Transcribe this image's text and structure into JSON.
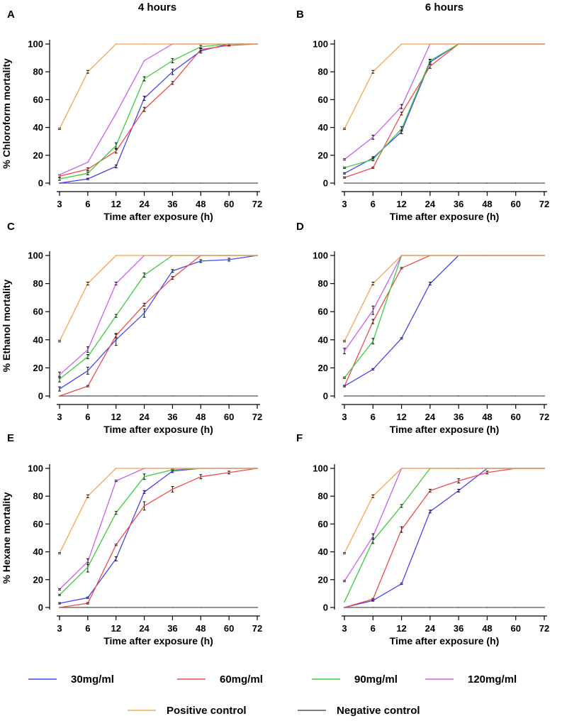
{
  "colors": {
    "c30": "#4646ee",
    "c60": "#ee4b4b",
    "c90": "#3ccc3c",
    "c120": "#c860ee",
    "pos": "#f5a550",
    "neg": "#555555",
    "axis": "#000000",
    "errorbar": "#111111"
  },
  "column_titles": [
    "4 hours",
    "6 hours"
  ],
  "legend": {
    "row1": [
      {
        "key": "c30",
        "label": "30mg/ml"
      },
      {
        "key": "c60",
        "label": "60mg/ml"
      },
      {
        "key": "c90",
        "label": "90mg/ml"
      },
      {
        "key": "c120",
        "label": "120mg/ml"
      }
    ],
    "row2": [
      {
        "key": "pos",
        "label": "Positive control"
      },
      {
        "key": "neg",
        "label": "Negative control"
      }
    ]
  },
  "chart_data": [
    {
      "panel": "A",
      "type": "line",
      "ylabel": "% Chloroform mortality",
      "xlabel": "Time after exposure (h)",
      "categories": [
        "3",
        "6",
        "12",
        "24",
        "36",
        "48",
        "60",
        "72"
      ],
      "ylim": [
        0,
        100
      ],
      "yticks": [
        0,
        20,
        40,
        60,
        80,
        100
      ],
      "series": [
        {
          "name": "30mg/ml",
          "key": "c30",
          "values": [
            0,
            3,
            12,
            61,
            80,
            95,
            100,
            100
          ],
          "err": [
            0,
            0.5,
            1,
            1.5,
            2,
            1.5,
            0,
            0
          ]
        },
        {
          "name": "60mg/ml",
          "key": "c60",
          "values": [
            5,
            10,
            23,
            53,
            72,
            96,
            99,
            100
          ],
          "err": [
            1,
            1,
            1.5,
            1.5,
            1,
            1,
            0.5,
            0
          ]
        },
        {
          "name": "90mg/ml",
          "key": "c90",
          "values": [
            3,
            7,
            27,
            75,
            88,
            98,
            100,
            100
          ],
          "err": [
            1,
            1,
            2,
            1.5,
            1.5,
            1,
            0,
            0
          ]
        },
        {
          "name": "120mg/ml",
          "key": "c120",
          "values": [
            6,
            15,
            50,
            88,
            100,
            100,
            100,
            100
          ],
          "err": [
            0,
            0,
            0,
            0,
            0,
            0,
            0,
            0
          ]
        },
        {
          "name": "Positive control",
          "key": "pos",
          "values": [
            39,
            80,
            100,
            100,
            100,
            100,
            100,
            100
          ],
          "err": [
            0.5,
            1,
            0,
            0,
            0,
            0,
            0,
            0
          ]
        },
        {
          "name": "Negative control",
          "key": "neg",
          "values": [
            0,
            0,
            0,
            0,
            0,
            0,
            0,
            0
          ],
          "err": [
            0,
            0,
            0,
            0,
            0,
            0,
            0,
            0
          ]
        }
      ]
    },
    {
      "panel": "B",
      "type": "line",
      "ylabel": "",
      "xlabel": "Time after exposure (h)",
      "categories": [
        "3",
        "6",
        "12",
        "24",
        "36",
        "48",
        "60",
        "72"
      ],
      "ylim": [
        0,
        100
      ],
      "yticks": [
        0,
        20,
        40,
        60,
        80,
        100
      ],
      "series": [
        {
          "name": "30mg/ml",
          "key": "c30",
          "values": [
            7,
            18,
            37,
            87,
            100,
            100,
            100,
            100
          ],
          "err": [
            0.5,
            1,
            1.5,
            1.5,
            0,
            0,
            0,
            0
          ]
        },
        {
          "name": "60mg/ml",
          "key": "c60",
          "values": [
            4,
            11,
            50,
            84,
            100,
            100,
            100,
            100
          ],
          "err": [
            0.5,
            0.5,
            1,
            1.5,
            0,
            0,
            0,
            0
          ]
        },
        {
          "name": "90mg/ml",
          "key": "c90",
          "values": [
            11,
            17,
            39,
            88,
            100,
            100,
            100,
            100
          ],
          "err": [
            0.5,
            1,
            1.5,
            1,
            0,
            0,
            0,
            0
          ]
        },
        {
          "name": "120mg/ml",
          "key": "c120",
          "values": [
            17,
            33,
            55,
            100,
            100,
            100,
            100,
            100
          ],
          "err": [
            0.5,
            1.5,
            1.5,
            0,
            0,
            0,
            0,
            0
          ]
        },
        {
          "name": "Positive control",
          "key": "pos",
          "values": [
            39,
            80,
            100,
            100,
            100,
            100,
            100,
            100
          ],
          "err": [
            0.5,
            1,
            0,
            0,
            0,
            0,
            0,
            0
          ]
        },
        {
          "name": "Negative control",
          "key": "neg",
          "values": [
            0,
            0,
            0,
            0,
            0,
            0,
            0,
            0
          ],
          "err": [
            0,
            0,
            0,
            0,
            0,
            0,
            0,
            0
          ]
        }
      ]
    },
    {
      "panel": "C",
      "type": "line",
      "ylabel": "% Ethanol mortality",
      "xlabel": "Time after exposure (h)",
      "categories": [
        "3",
        "6",
        "12",
        "24",
        "36",
        "48",
        "60",
        "72"
      ],
      "ylim": [
        0,
        100
      ],
      "yticks": [
        0,
        20,
        40,
        60,
        80,
        100
      ],
      "series": [
        {
          "name": "30mg/ml",
          "key": "c30",
          "values": [
            5,
            18,
            40,
            59,
            89,
            96,
            97,
            100
          ],
          "err": [
            1.5,
            2.5,
            4,
            3,
            1,
            1,
            1,
            0
          ]
        },
        {
          "name": "60mg/ml",
          "key": "c60",
          "values": [
            0,
            7,
            43,
            65,
            84,
            100,
            100,
            100
          ],
          "err": [
            0,
            0.5,
            1.5,
            1,
            1,
            0,
            0,
            0
          ]
        },
        {
          "name": "90mg/ml",
          "key": "c90",
          "values": [
            12,
            28,
            57,
            86,
            100,
            100,
            100,
            100
          ],
          "err": [
            2,
            1.5,
            1,
            1.5,
            0,
            0,
            0,
            0
          ]
        },
        {
          "name": "120mg/ml",
          "key": "c120",
          "values": [
            15,
            33,
            80,
            100,
            100,
            100,
            100,
            100
          ],
          "err": [
            2,
            2,
            1,
            0,
            0,
            0,
            0,
            0
          ]
        },
        {
          "name": "Positive control",
          "key": "pos",
          "values": [
            39,
            80,
            100,
            100,
            100,
            100,
            100,
            100
          ],
          "err": [
            0.5,
            1,
            0,
            0,
            0,
            0,
            0,
            0
          ]
        },
        {
          "name": "Negative control",
          "key": "neg",
          "values": [
            0,
            0,
            0,
            0,
            0,
            0,
            0,
            0
          ],
          "err": [
            0,
            0,
            0,
            0,
            0,
            0,
            0,
            0
          ]
        }
      ]
    },
    {
      "panel": "D",
      "type": "line",
      "ylabel": "",
      "xlabel": "Time after exposure (h)",
      "categories": [
        "3",
        "6",
        "12",
        "24",
        "36",
        "48",
        "60",
        "72"
      ],
      "ylim": [
        0,
        100
      ],
      "yticks": [
        0,
        20,
        40,
        60,
        80,
        100
      ],
      "series": [
        {
          "name": "30mg/ml",
          "key": "c30",
          "values": [
            7,
            19,
            41,
            80,
            100,
            100,
            100,
            100
          ],
          "err": [
            0.5,
            0.5,
            0.5,
            1,
            0,
            0,
            0,
            0
          ]
        },
        {
          "name": "60mg/ml",
          "key": "c60",
          "values": [
            7,
            53,
            91,
            100,
            100,
            100,
            100,
            100
          ],
          "err": [
            0.5,
            1.5,
            0.5,
            0,
            0,
            0,
            0,
            0
          ]
        },
        {
          "name": "90mg/ml",
          "key": "c90",
          "values": [
            13,
            39,
            100,
            100,
            100,
            100,
            100,
            100
          ],
          "err": [
            0.5,
            2,
            0,
            0,
            0,
            0,
            0,
            0
          ]
        },
        {
          "name": "120mg/ml",
          "key": "c120",
          "values": [
            32,
            61,
            100,
            100,
            100,
            100,
            100,
            100
          ],
          "err": [
            2,
            3,
            0,
            0,
            0,
            0,
            0,
            0
          ]
        },
        {
          "name": "Positive control",
          "key": "pos",
          "values": [
            39,
            80,
            100,
            100,
            100,
            100,
            100,
            100
          ],
          "err": [
            0.5,
            1,
            0,
            0,
            0,
            0,
            0,
            0
          ]
        },
        {
          "name": "Negative control",
          "key": "neg",
          "values": [
            0,
            0,
            0,
            0,
            0,
            0,
            0,
            0
          ],
          "err": [
            0,
            0,
            0,
            0,
            0,
            0,
            0,
            0
          ]
        }
      ]
    },
    {
      "panel": "E",
      "type": "line",
      "ylabel": "% Hexane mortality",
      "xlabel": "Time after exposure (h)",
      "categories": [
        "3",
        "6",
        "12",
        "24",
        "36",
        "48",
        "60",
        "72"
      ],
      "ylim": [
        0,
        100
      ],
      "yticks": [
        0,
        20,
        40,
        60,
        80,
        100
      ],
      "series": [
        {
          "name": "30mg/ml",
          "key": "c30",
          "values": [
            3,
            7,
            35,
            83,
            98,
            100,
            100,
            100
          ],
          "err": [
            0.5,
            0.5,
            1.5,
            1,
            1,
            0,
            0,
            0
          ]
        },
        {
          "name": "60mg/ml",
          "key": "c60",
          "values": [
            0,
            3,
            45,
            73,
            85,
            94,
            97,
            100
          ],
          "err": [
            0,
            0.5,
            0.5,
            3,
            2,
            1.5,
            1,
            0
          ]
        },
        {
          "name": "90mg/ml",
          "key": "c90",
          "values": [
            9,
            29,
            68,
            94,
            99,
            100,
            100,
            100
          ],
          "err": [
            0.5,
            3.5,
            1,
            2,
            0.5,
            0,
            0,
            0
          ]
        },
        {
          "name": "120mg/ml",
          "key": "c120",
          "values": [
            13,
            33,
            91,
            100,
            100,
            100,
            100,
            100
          ],
          "err": [
            0.5,
            2,
            0.5,
            0,
            0,
            0,
            0,
            0
          ]
        },
        {
          "name": "Positive control",
          "key": "pos",
          "values": [
            39,
            80,
            100,
            100,
            100,
            100,
            100,
            100
          ],
          "err": [
            0.5,
            1,
            0,
            0,
            0,
            0,
            0,
            0
          ]
        },
        {
          "name": "Negative control",
          "key": "neg",
          "values": [
            0,
            0,
            0,
            0,
            0,
            0,
            0,
            0
          ],
          "err": [
            0,
            0,
            0,
            0,
            0,
            0,
            0,
            0
          ]
        }
      ]
    },
    {
      "panel": "F",
      "type": "line",
      "ylabel": "",
      "xlabel": "Time after exposure (h)",
      "categories": [
        "3",
        "6",
        "12",
        "24",
        "36",
        "48",
        "60",
        "72"
      ],
      "ylim": [
        0,
        100
      ],
      "yticks": [
        0,
        20,
        40,
        60,
        80,
        100
      ],
      "series": [
        {
          "name": "30mg/ml",
          "key": "c30",
          "values": [
            0,
            5,
            17,
            69,
            84,
            100,
            100,
            100
          ],
          "err": [
            0,
            0.5,
            0.5,
            1,
            1,
            0,
            0,
            0
          ]
        },
        {
          "name": "60mg/ml",
          "key": "c60",
          "values": [
            0,
            6,
            56,
            84,
            91,
            97,
            100,
            100
          ],
          "err": [
            0,
            0.5,
            2,
            1,
            1.5,
            1,
            0,
            0
          ]
        },
        {
          "name": "90mg/ml",
          "key": "c90",
          "values": [
            4,
            48,
            73,
            100,
            100,
            100,
            100,
            100
          ],
          "err": [
            0,
            2,
            1,
            0,
            0,
            0,
            0,
            0
          ]
        },
        {
          "name": "120mg/ml",
          "key": "c120",
          "values": [
            19,
            51,
            100,
            100,
            100,
            100,
            100,
            100
          ],
          "err": [
            0.5,
            2,
            0,
            0,
            0,
            0,
            0,
            0
          ]
        },
        {
          "name": "Positive control",
          "key": "pos",
          "values": [
            39,
            80,
            100,
            100,
            100,
            100,
            100,
            100
          ],
          "err": [
            0.5,
            1,
            0,
            0,
            0,
            0,
            0,
            0
          ]
        },
        {
          "name": "Negative control",
          "key": "neg",
          "values": [
            0,
            0,
            0,
            0,
            0,
            0,
            0,
            0
          ],
          "err": [
            0,
            0,
            0,
            0,
            0,
            0,
            0,
            0
          ]
        }
      ]
    }
  ]
}
